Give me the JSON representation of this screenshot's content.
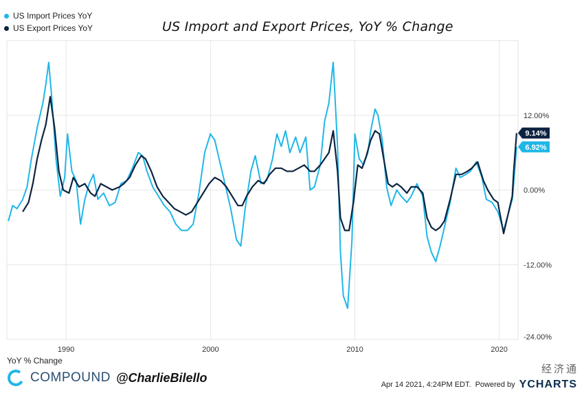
{
  "legend": [
    {
      "label": "US Import Prices YoY",
      "color": "#1fb6e8"
    },
    {
      "label": "US Export Prices YoY",
      "color": "#0c2340"
    }
  ],
  "footer": {
    "ylabel": "YoY % Change",
    "brand": "COMPOUND",
    "handle": "@CharlieBilello",
    "timestamp": "Apr 14 2021, 4:24PM EDT.",
    "powered_by": "Powered by",
    "ycharts": "YCHARTS",
    "watermark": "经济通"
  },
  "chart_data": {
    "type": "line",
    "title": "US Import and Export Prices, YoY % Change",
    "ylabel": "YoY % Change",
    "xlim": [
      1985.9,
      2021.3
    ],
    "ylim": [
      -24,
      24
    ],
    "x_ticks": [
      1990,
      2000,
      2010,
      2020
    ],
    "y_ticks": [
      {
        "value": 12,
        "label": "12.00%"
      },
      {
        "value": 0,
        "label": "0.00%"
      },
      {
        "value": -12,
        "label": "-12.00%"
      },
      {
        "value": -24,
        "label": "-24.00%"
      }
    ],
    "grid": true,
    "legend_position": "top-left",
    "series": [
      {
        "name": "US Import Prices YoY",
        "color": "#1fb6e8",
        "last_label": "6.92%",
        "points": [
          [
            1986.0,
            -5.0
          ],
          [
            1986.3,
            -2.5
          ],
          [
            1986.6,
            -3.0
          ],
          [
            1987.0,
            -1.5
          ],
          [
            1987.3,
            0.5
          ],
          [
            1987.6,
            5.0
          ],
          [
            1988.0,
            10.0
          ],
          [
            1988.4,
            14.0
          ],
          [
            1988.6,
            17.0
          ],
          [
            1988.8,
            20.5
          ],
          [
            1989.0,
            15.0
          ],
          [
            1989.3,
            5.0
          ],
          [
            1989.6,
            -1.0
          ],
          [
            1989.9,
            2.0
          ],
          [
            1990.1,
            9.0
          ],
          [
            1990.4,
            3.0
          ],
          [
            1990.7,
            1.5
          ],
          [
            1991.0,
            -5.5
          ],
          [
            1991.3,
            -1.5
          ],
          [
            1991.6,
            1.0
          ],
          [
            1991.9,
            2.5
          ],
          [
            1992.2,
            -1.5
          ],
          [
            1992.6,
            -0.5
          ],
          [
            1993.0,
            -2.5
          ],
          [
            1993.4,
            -2.0
          ],
          [
            1993.8,
            1.0
          ],
          [
            1994.2,
            1.5
          ],
          [
            1994.6,
            3.5
          ],
          [
            1995.0,
            6.0
          ],
          [
            1995.3,
            5.5
          ],
          [
            1995.6,
            3.0
          ],
          [
            1996.0,
            0.5
          ],
          [
            1996.4,
            -1.0
          ],
          [
            1996.8,
            -2.5
          ],
          [
            1997.2,
            -3.5
          ],
          [
            1997.6,
            -5.5
          ],
          [
            1998.0,
            -6.5
          ],
          [
            1998.4,
            -6.5
          ],
          [
            1998.8,
            -5.5
          ],
          [
            1999.2,
            -0.5
          ],
          [
            1999.6,
            6.0
          ],
          [
            2000.0,
            9.0
          ],
          [
            2000.3,
            8.0
          ],
          [
            2000.6,
            5.0
          ],
          [
            2001.0,
            1.0
          ],
          [
            2001.4,
            -3.0
          ],
          [
            2001.8,
            -8.0
          ],
          [
            2002.1,
            -9.0
          ],
          [
            2002.4,
            -3.0
          ],
          [
            2002.8,
            3.0
          ],
          [
            2003.1,
            5.5
          ],
          [
            2003.5,
            1.0
          ],
          [
            2003.9,
            1.5
          ],
          [
            2004.3,
            5.0
          ],
          [
            2004.6,
            9.0
          ],
          [
            2004.9,
            7.0
          ],
          [
            2005.2,
            9.5
          ],
          [
            2005.5,
            6.0
          ],
          [
            2005.9,
            8.5
          ],
          [
            2006.2,
            6.0
          ],
          [
            2006.6,
            8.5
          ],
          [
            2006.9,
            0.0
          ],
          [
            2007.2,
            0.5
          ],
          [
            2007.6,
            4.0
          ],
          [
            2007.9,
            11.0
          ],
          [
            2008.2,
            14.0
          ],
          [
            2008.5,
            20.5
          ],
          [
            2008.8,
            7.0
          ],
          [
            2009.0,
            -10.0
          ],
          [
            2009.2,
            -17.0
          ],
          [
            2009.5,
            -19.0
          ],
          [
            2009.8,
            -8.0
          ],
          [
            2010.0,
            9.0
          ],
          [
            2010.3,
            5.0
          ],
          [
            2010.6,
            4.0
          ],
          [
            2010.9,
            6.0
          ],
          [
            2011.1,
            9.5
          ],
          [
            2011.4,
            13.0
          ],
          [
            2011.6,
            12.0
          ],
          [
            2011.9,
            8.0
          ],
          [
            2012.2,
            0.5
          ],
          [
            2012.5,
            -2.5
          ],
          [
            2012.9,
            0.0
          ],
          [
            2013.2,
            -1.0
          ],
          [
            2013.6,
            -2.0
          ],
          [
            2013.9,
            -1.0
          ],
          [
            2014.3,
            1.0
          ],
          [
            2014.7,
            -1.0
          ],
          [
            2015.0,
            -7.5
          ],
          [
            2015.3,
            -10.0
          ],
          [
            2015.6,
            -11.5
          ],
          [
            2015.9,
            -9.0
          ],
          [
            2016.2,
            -6.0
          ],
          [
            2016.6,
            -2.0
          ],
          [
            2017.0,
            3.5
          ],
          [
            2017.3,
            2.0
          ],
          [
            2017.7,
            2.5
          ],
          [
            2018.0,
            3.0
          ],
          [
            2018.4,
            4.5
          ],
          [
            2018.8,
            2.0
          ],
          [
            2019.1,
            -1.5
          ],
          [
            2019.5,
            -2.0
          ],
          [
            2019.9,
            -3.5
          ],
          [
            2020.3,
            -6.5
          ],
          [
            2020.6,
            -4.0
          ],
          [
            2020.9,
            -1.5
          ],
          [
            2021.0,
            1.0
          ],
          [
            2021.2,
            6.92
          ]
        ]
      },
      {
        "name": "US Export Prices YoY",
        "color": "#0c2340",
        "last_label": "9.14%",
        "points": [
          [
            1987.0,
            -3.5
          ],
          [
            1987.4,
            -2.0
          ],
          [
            1987.7,
            1.0
          ],
          [
            1988.0,
            5.0
          ],
          [
            1988.3,
            8.0
          ],
          [
            1988.6,
            10.5
          ],
          [
            1988.9,
            15.0
          ],
          [
            1989.2,
            10.0
          ],
          [
            1989.5,
            3.0
          ],
          [
            1989.8,
            0.0
          ],
          [
            1990.2,
            -0.5
          ],
          [
            1990.5,
            2.0
          ],
          [
            1990.9,
            0.5
          ],
          [
            1991.3,
            1.0
          ],
          [
            1991.7,
            -0.5
          ],
          [
            1992.0,
            -1.0
          ],
          [
            1992.4,
            1.0
          ],
          [
            1992.8,
            0.5
          ],
          [
            1993.2,
            0.0
          ],
          [
            1993.7,
            0.5
          ],
          [
            1994.0,
            1.0
          ],
          [
            1994.4,
            2.0
          ],
          [
            1994.8,
            4.0
          ],
          [
            1995.2,
            5.5
          ],
          [
            1995.5,
            5.0
          ],
          [
            1995.9,
            3.0
          ],
          [
            1996.3,
            0.5
          ],
          [
            1996.7,
            -1.0
          ],
          [
            1997.1,
            -2.0
          ],
          [
            1997.5,
            -3.0
          ],
          [
            1997.9,
            -3.5
          ],
          [
            1998.3,
            -4.0
          ],
          [
            1998.7,
            -3.5
          ],
          [
            1999.1,
            -2.0
          ],
          [
            1999.5,
            -0.5
          ],
          [
            1999.9,
            1.0
          ],
          [
            2000.3,
            2.0
          ],
          [
            2000.7,
            1.5
          ],
          [
            2001.1,
            0.5
          ],
          [
            2001.5,
            -1.0
          ],
          [
            2001.9,
            -2.5
          ],
          [
            2002.2,
            -2.5
          ],
          [
            2002.5,
            -1.0
          ],
          [
            2002.9,
            0.5
          ],
          [
            2003.3,
            1.5
          ],
          [
            2003.7,
            1.0
          ],
          [
            2004.1,
            2.5
          ],
          [
            2004.5,
            3.5
          ],
          [
            2004.9,
            3.5
          ],
          [
            2005.3,
            3.0
          ],
          [
            2005.7,
            3.0
          ],
          [
            2006.1,
            3.5
          ],
          [
            2006.5,
            4.0
          ],
          [
            2006.9,
            3.0
          ],
          [
            2007.2,
            3.0
          ],
          [
            2007.6,
            4.0
          ],
          [
            2007.9,
            5.0
          ],
          [
            2008.2,
            6.0
          ],
          [
            2008.5,
            9.5
          ],
          [
            2008.8,
            3.0
          ],
          [
            2009.0,
            -4.5
          ],
          [
            2009.3,
            -6.5
          ],
          [
            2009.6,
            -6.5
          ],
          [
            2009.9,
            -2.0
          ],
          [
            2010.2,
            4.0
          ],
          [
            2010.5,
            3.5
          ],
          [
            2010.8,
            5.5
          ],
          [
            2011.1,
            8.0
          ],
          [
            2011.4,
            9.5
          ],
          [
            2011.7,
            9.0
          ],
          [
            2012.0,
            5.0
          ],
          [
            2012.3,
            1.0
          ],
          [
            2012.6,
            0.5
          ],
          [
            2012.9,
            1.0
          ],
          [
            2013.2,
            0.5
          ],
          [
            2013.6,
            -0.5
          ],
          [
            2013.9,
            0.5
          ],
          [
            2014.3,
            0.5
          ],
          [
            2014.7,
            -0.5
          ],
          [
            2015.0,
            -4.5
          ],
          [
            2015.3,
            -6.0
          ],
          [
            2015.6,
            -6.5
          ],
          [
            2015.9,
            -6.0
          ],
          [
            2016.2,
            -5.0
          ],
          [
            2016.6,
            -1.5
          ],
          [
            2017.0,
            2.5
          ],
          [
            2017.4,
            2.5
          ],
          [
            2017.8,
            3.0
          ],
          [
            2018.1,
            3.5
          ],
          [
            2018.5,
            4.5
          ],
          [
            2018.9,
            1.5
          ],
          [
            2019.2,
            0.0
          ],
          [
            2019.6,
            -1.5
          ],
          [
            2019.9,
            -2.0
          ],
          [
            2020.3,
            -7.0
          ],
          [
            2020.6,
            -4.0
          ],
          [
            2020.9,
            -1.0
          ],
          [
            2021.0,
            3.0
          ],
          [
            2021.2,
            9.14
          ]
        ]
      }
    ]
  }
}
